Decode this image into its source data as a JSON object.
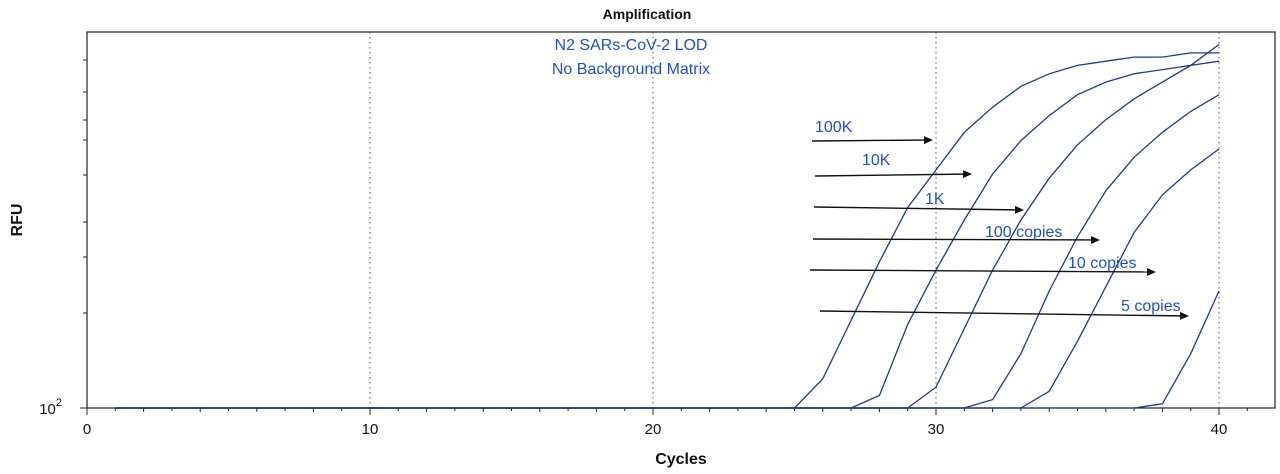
{
  "chart_data": {
    "type": "line",
    "title": "Amplification",
    "xlabel": "Cycles",
    "ylabel": "RFU",
    "y_scale": "log",
    "y_tick_label_base": "10",
    "y_tick_label_exp": "2",
    "x_ticks": [
      0,
      10,
      20,
      30,
      40
    ],
    "xlim": [
      0,
      42
    ],
    "grid": "vertical dotted at x = 10, 20, 30, 40",
    "annotations": [
      "N2 SARs-CoV-2 LOD",
      "No Background Matrix"
    ],
    "series": [
      {
        "name": "100K",
        "x": [
          1,
          25,
          26,
          27,
          28,
          29,
          30,
          31,
          32,
          33,
          34,
          35,
          36,
          37,
          38,
          39,
          40
        ],
        "y": [
          100,
          100,
          107,
          121,
          135,
          148,
          157,
          166,
          172,
          177,
          180,
          182,
          183,
          184,
          184,
          185,
          185
        ]
      },
      {
        "name": "10K",
        "x": [
          1,
          27,
          28,
          29,
          30,
          31,
          32,
          33,
          34,
          35,
          36,
          37,
          38,
          39,
          40
        ],
        "y": [
          100,
          100,
          103,
          120,
          133,
          145,
          156,
          164,
          170,
          175,
          178,
          180,
          181,
          182,
          183
        ]
      },
      {
        "name": "1K",
        "x": [
          1,
          29,
          30,
          31,
          32,
          33,
          34,
          35,
          36,
          37,
          38,
          39,
          40
        ],
        "y": [
          100,
          100,
          105,
          119,
          133,
          145,
          155,
          163,
          169,
          174,
          178,
          182,
          187
        ]
      },
      {
        "name": "100 copies",
        "x": [
          1,
          30,
          31,
          32,
          33,
          34,
          35,
          36,
          37,
          38,
          39,
          40
        ],
        "y": [
          100,
          100,
          100,
          102,
          113,
          128,
          141,
          152,
          160,
          166,
          171,
          175
        ]
      },
      {
        "name": "10 copies",
        "x": [
          1,
          33,
          34,
          35,
          36,
          37,
          38,
          39,
          40
        ],
        "y": [
          100,
          100,
          104,
          116,
          129,
          142,
          151,
          157,
          162
        ]
      },
      {
        "name": "5 copies",
        "x": [
          1,
          36,
          37,
          38,
          39,
          40
        ],
        "y": [
          100,
          100,
          100,
          101,
          113,
          128
        ]
      }
    ],
    "arrow_labels": [
      "100K",
      "10K",
      "1K",
      "100 copies",
      "10 copies",
      "5 copies"
    ]
  }
}
